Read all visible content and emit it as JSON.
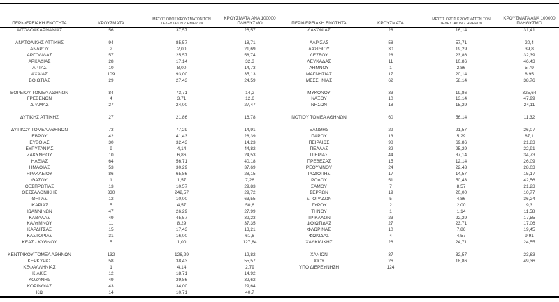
{
  "page": {
    "background": "#ffffff",
    "text_color": "#3b3b3b",
    "rule_color": "#000000"
  },
  "table": {
    "headers": {
      "region": "ΠΕΡΙΦΕΡΕΙΑΚΗ ΕΝΟΤΗΤΑ",
      "cases": "ΚΡΟΥΣΜΑΤΑ",
      "avg7_line1": "ΜΕΣΟΣ ΟΡΟΣ ΚΡΟΥΣΜΑΤΩΝ ΤΩΝ",
      "avg7_line2": "ΤΕΛΕΥΤΑΙΩΝ 7 ΗΜΕΡΩΝ",
      "per100k_line1": "ΚΡΟΥΣΜΑΤΑ ΑΝΑ 100000",
      "per100k_line2": "ΠΛΗΘΥΣΜΟ"
    },
    "columns": [
      "name",
      "cases",
      "avg7",
      "per100k"
    ],
    "left_rows": [
      [
        "ΑΙΤΩΛΟΑΚΑΡΝΑΝΙΑΣ",
        "56",
        "37,57",
        "26,57"
      ],
      null,
      [
        "ΑΝΑΤΟΛΙΚΗΣ ΑΤΤΙΚΗΣ",
        "94",
        "85,57",
        "18,71"
      ],
      [
        "ΑΝΔΡΟΥ",
        "2",
        "2,00",
        "21,69"
      ],
      [
        "ΑΡΓΟΛΙΔΑΣ",
        "57",
        "25,57",
        "58,74"
      ],
      [
        "ΑΡΚΑΔΙΑΣ",
        "28",
        "17,14",
        "32,3"
      ],
      [
        "ΑΡΤΑΣ",
        "10",
        "8,00",
        "14,73"
      ],
      [
        "ΑΧΑΪΑΣ",
        "109",
        "93,00",
        "35,13"
      ],
      [
        "ΒΟΙΩΤΙΑΣ",
        "29",
        "27,43",
        "24,59"
      ],
      null,
      [
        "ΒΟΡΕΙΟΥ ΤΟΜΕΑ ΑΘΗΝΩΝ",
        "84",
        "73,71",
        "14,2"
      ],
      [
        "ΓΡΕΒΕΝΩΝ",
        "4",
        "3,71",
        "12,6"
      ],
      [
        "ΔΡΑΜΑΣ",
        "27",
        "24,00",
        "27,47"
      ],
      null,
      [
        "ΔΥΤΙΚΗΣ ΑΤΤΙΚΗΣ",
        "27",
        "21,86",
        "16,78"
      ],
      null,
      [
        "ΔΥΤΙΚΟΥ ΤΟΜΕΑ ΑΘΗΝΩΝ",
        "73",
        "77,29",
        "14,91"
      ],
      [
        "ΕΒΡΟΥ",
        "42",
        "41,43",
        "28,39"
      ],
      [
        "ΕΥΒΟΙΑΣ",
        "30",
        "32,43",
        "14,23"
      ],
      [
        "ΕΥΡΥΤΑΝΙΑΣ",
        "9",
        "4,14",
        "44,82"
      ],
      [
        "ΖΑΚΥΝΘΟΥ",
        "10",
        "6,86",
        "24,53"
      ],
      [
        "ΗΛΕΙΑΣ",
        "64",
        "56,71",
        "40,18"
      ],
      [
        "ΗΜΑΘΙΑΣ",
        "53",
        "30,29",
        "37,69"
      ],
      [
        "ΗΡΑΚΛΕΙΟΥ",
        "86",
        "65,86",
        "28,15"
      ],
      [
        "ΘΑΣΟΥ",
        "1",
        "1,57",
        "7,26"
      ],
      [
        "ΘΕΣΠΡΩΤΙΑΣ",
        "13",
        "10,57",
        "29,83"
      ],
      [
        "ΘΕΣΣΑΛΟΝΙΚΗΣ",
        "330",
        "242,57",
        "29,72"
      ],
      [
        "ΘΗΡΑΣ",
        "12",
        "10,00",
        "63,55"
      ],
      [
        "ΙΚΑΡΙΑΣ",
        "5",
        "4,57",
        "50,6"
      ],
      [
        "ΙΩΑΝΝΙΝΩΝ",
        "47",
        "26,29",
        "27,99"
      ],
      [
        "ΚΑΒΑΛΑΣ",
        "49",
        "45,57",
        "39,23"
      ],
      [
        "ΚΑΛΥΜΝΟΥ",
        "11",
        "8,29",
        "37,35"
      ],
      [
        "ΚΑΡΔΙΤΣΑΣ",
        "15",
        "17,43",
        "13,21"
      ],
      [
        "ΚΑΣΤΟΡΙΑΣ",
        "31",
        "16,00",
        "61,6"
      ],
      [
        "ΚΕΑΣ - ΚΥΘΝΟΥ",
        "5",
        "1,00",
        "127,84"
      ],
      null,
      [
        "ΚΕΝΤΡΙΚΟΥ ΤΟΜΕΑ ΑΘΗΝΩΝ",
        "132",
        "126,29",
        "12,82"
      ],
      [
        "ΚΕΡΚΥΡΑΣ",
        "58",
        "38,43",
        "55,57"
      ],
      [
        "ΚΕΦΑΛΛΗΝΙΑΣ",
        "1",
        "4,14",
        "2,79"
      ],
      [
        "ΚΙΛΚΙΣ",
        "12",
        "18,71",
        "14,92"
      ],
      [
        "ΚΟΖΑΝΗΣ",
        "49",
        "39,86",
        "32,62"
      ],
      [
        "ΚΟΡΙΝΘΙΑΣ",
        "43",
        "34,00",
        "29,64"
      ],
      [
        "ΚΩ",
        "14",
        "10,71",
        "40,7"
      ]
    ],
    "right_rows": [
      [
        "ΛΑΚΩΝΙΑΣ",
        "28",
        "16,14",
        "31,41"
      ],
      null,
      [
        "ΛΑΡΙΣΑΣ",
        "58",
        "57,71",
        "20,4"
      ],
      [
        "ΛΑΣΙΘΙΟΥ",
        "30",
        "19,29",
        "39,8"
      ],
      [
        "ΛΕΣΒΟΥ",
        "28",
        "23,86",
        "32,39"
      ],
      [
        "ΛΕΥΚΑΔΑΣ",
        "11",
        "10,86",
        "46,43"
      ],
      [
        "ΛΗΜΝΟΥ",
        "1",
        "2,86",
        "5,79"
      ],
      [
        "ΜΑΓΝΗΣΙΑΣ",
        "17",
        "20,14",
        "8,95"
      ],
      [
        "ΜΕΣΣΗΝΙΑΣ",
        "62",
        "58,14",
        "38,76"
      ],
      null,
      [
        "ΜΥΚΟΝΟΥ",
        "33",
        "19,86",
        "325,64"
      ],
      [
        "ΝΑΞΟΥ",
        "10",
        "13,14",
        "47,99"
      ],
      [
        "ΝΗΣΩΝ",
        "18",
        "15,29",
        "24,11"
      ],
      null,
      [
        "ΝΟΤΙΟΥ ΤΟΜΕΑ ΑΘΗΝΩΝ",
        "60",
        "56,14",
        "11,32"
      ],
      null,
      [
        "ΞΑΝΘΗΣ",
        "29",
        "21,57",
        "26,07"
      ],
      [
        "ΠΑΡΟΥ",
        "13",
        "5,29",
        "87,1"
      ],
      [
        "ΠΕΙΡΑΙΩΣ",
        "98",
        "69,86",
        "21,83"
      ],
      [
        "ΠΕΛΛΑΣ",
        "32",
        "25,29",
        "22,91"
      ],
      [
        "ΠΙΕΡΙΑΣ",
        "44",
        "37,14",
        "34,73"
      ],
      [
        "ΠΡΕΒΕΖΑΣ",
        "15",
        "12,14",
        "26,09"
      ],
      [
        "ΡΕΘΥΜΝΟΥ",
        "24",
        "22,43",
        "28,03"
      ],
      [
        "ΡΟΔΟΠΗΣ",
        "17",
        "14,57",
        "15,17"
      ],
      [
        "ΡΟΔΟΥ",
        "51",
        "50,43",
        "42,56"
      ],
      [
        "ΣΑΜΟΥ",
        "7",
        "8,57",
        "21,23"
      ],
      [
        "ΣΕΡΡΩΝ",
        "19",
        "20,00",
        "10,77"
      ],
      [
        "ΣΠΟΡΑΔΩΝ",
        "5",
        "4,86",
        "36,24"
      ],
      [
        "ΣΥΡΟΥ",
        "2",
        "2,00",
        "9,3"
      ],
      [
        "ΤΗΝΟΥ",
        "1",
        "1,14",
        "11,58"
      ],
      [
        "ΤΡΙΚΑΛΩΝ",
        "23",
        "22,29",
        "17,55"
      ],
      [
        "ΦΘΙΩΤΙΔΑΣ",
        "27",
        "23,71",
        "17,06"
      ],
      [
        "ΦΛΩΡΙΝΑΣ",
        "10",
        "7,86",
        "19,45"
      ],
      [
        "ΦΩΚΙΔΑΣ",
        "4",
        "4,57",
        "9,91"
      ],
      [
        "ΧΑΛΚΙΔΙΚΗΣ",
        "26",
        "24,71",
        "24,55"
      ],
      null,
      [
        "ΧΑΝΙΩΝ",
        "37",
        "32,57",
        "23,63"
      ],
      [
        "ΧΙΟΥ",
        "26",
        "18,86",
        "49,36"
      ],
      [
        "ΥΠΟ ΔΙΕΡΕΥΝΗΣΗ",
        "124",
        "",
        ""
      ],
      null,
      null,
      null,
      null
    ]
  }
}
